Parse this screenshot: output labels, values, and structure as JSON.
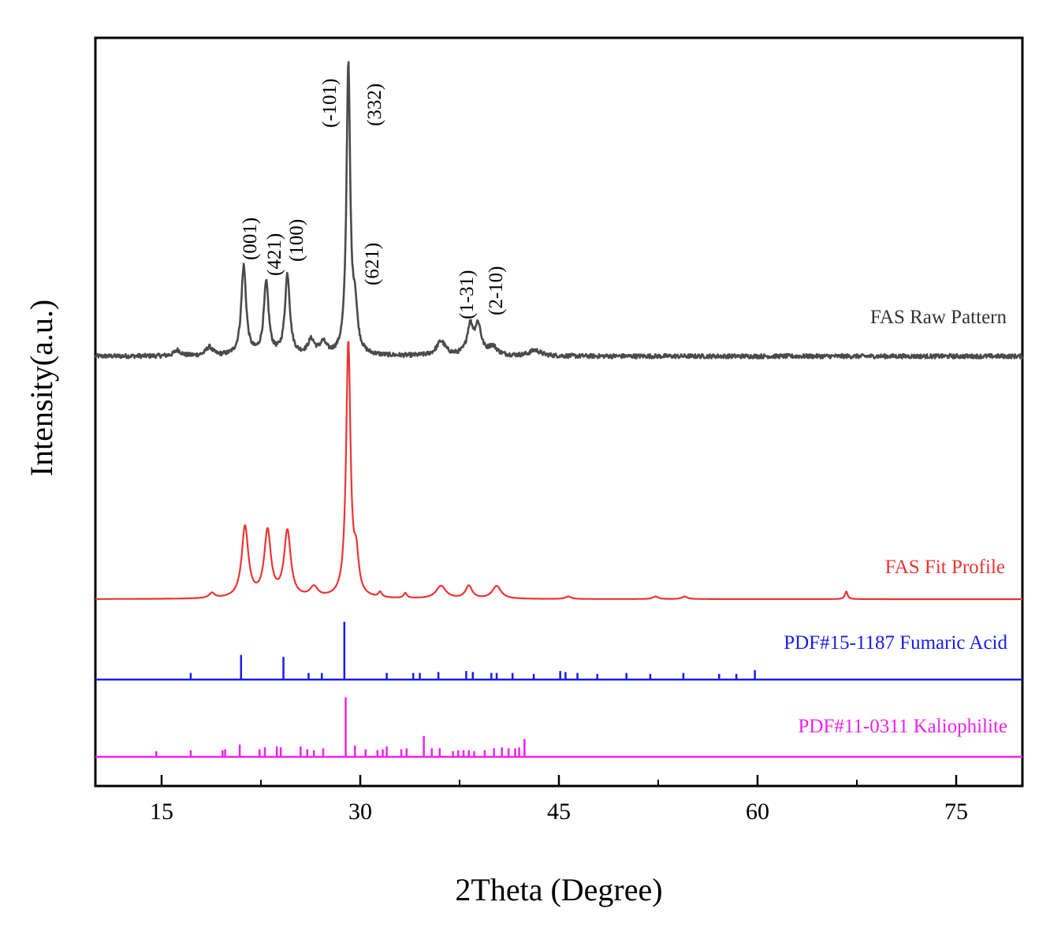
{
  "chart_data": {
    "type": "line",
    "xlabel": "2Theta (Degree)",
    "ylabel": "Intensity(a.u.)",
    "xlim": [
      10,
      80
    ],
    "xticks": [
      15,
      30,
      45,
      60,
      75
    ],
    "xtick_labels": [
      "15",
      "30",
      "45",
      "60",
      "75"
    ],
    "y_ticks_shown": false,
    "grid": false,
    "series": [
      {
        "name": "FAS Raw Pattern",
        "color": "#4a4a4a",
        "kind": "profile",
        "peaks": [
          {
            "x": 16.2,
            "h": 2,
            "w": 0.3
          },
          {
            "x": 18.6,
            "h": 3,
            "w": 0.3
          },
          {
            "x": 21.2,
            "h": 31,
            "w": 0.22
          },
          {
            "x": 22.9,
            "h": 25,
            "w": 0.22
          },
          {
            "x": 24.5,
            "h": 28,
            "w": 0.22
          },
          {
            "x": 26.3,
            "h": 5,
            "w": 0.3
          },
          {
            "x": 27.2,
            "h": 4,
            "w": 0.3
          },
          {
            "x": 29.1,
            "h": 100,
            "w": 0.17
          },
          {
            "x": 29.6,
            "h": 15,
            "w": 0.22
          },
          {
            "x": 36.1,
            "h": 5,
            "w": 0.4
          },
          {
            "x": 38.3,
            "h": 10,
            "w": 0.28
          },
          {
            "x": 38.9,
            "h": 10,
            "w": 0.28
          },
          {
            "x": 40.0,
            "h": 3,
            "w": 0.4
          },
          {
            "x": 43.2,
            "h": 2,
            "w": 0.5
          }
        ],
        "noise": 1.5,
        "scale_px": 365
      },
      {
        "name": "FAS Fit Profile",
        "color": "#ee3333",
        "kind": "profile",
        "peaks": [
          {
            "x": 18.8,
            "h": 2,
            "w": 0.25
          },
          {
            "x": 21.3,
            "h": 28,
            "w": 0.3
          },
          {
            "x": 23.0,
            "h": 26,
            "w": 0.3
          },
          {
            "x": 24.5,
            "h": 26,
            "w": 0.3
          },
          {
            "x": 26.5,
            "h": 4,
            "w": 0.35
          },
          {
            "x": 29.1,
            "h": 100,
            "w": 0.2
          },
          {
            "x": 29.7,
            "h": 14,
            "w": 0.22
          },
          {
            "x": 31.5,
            "h": 2,
            "w": 0.15
          },
          {
            "x": 33.4,
            "h": 2,
            "w": 0.15
          },
          {
            "x": 36.1,
            "h": 5,
            "w": 0.45
          },
          {
            "x": 38.2,
            "h": 5,
            "w": 0.3
          },
          {
            "x": 40.3,
            "h": 5,
            "w": 0.4
          },
          {
            "x": 45.7,
            "h": 1,
            "w": 0.25
          },
          {
            "x": 52.3,
            "h": 1,
            "w": 0.25
          },
          {
            "x": 54.5,
            "h": 1,
            "w": 0.25
          },
          {
            "x": 66.7,
            "h": 3,
            "w": 0.12
          }
        ],
        "noise": 0,
        "scale_px": 323
      },
      {
        "name": "PDF#15-1187  Fumaric Acid",
        "color": "#1a1aee",
        "kind": "sticks",
        "x": [
          17.2,
          21.0,
          24.2,
          26.1,
          27.1,
          28.8,
          32.0,
          34.0,
          34.5,
          35.9,
          38.0,
          38.5,
          39.9,
          40.3,
          41.5,
          43.1,
          45.1,
          45.5,
          46.4,
          47.9,
          50.1,
          51.9,
          54.4,
          57.1,
          58.4,
          59.8
        ],
        "h": [
          7,
          26,
          24,
          7,
          7,
          61,
          7,
          7,
          7,
          8,
          9,
          8,
          7,
          7,
          7,
          6,
          9,
          8,
          7,
          6,
          7,
          6,
          7,
          6,
          6,
          10
        ],
        "scale_px": 1.2
      },
      {
        "name": "PDF#11-0311  Kaliophilite",
        "color": "#ee22ee",
        "kind": "sticks",
        "x": [
          14.6,
          17.2,
          19.6,
          19.8,
          20.9,
          22.4,
          22.8,
          23.7,
          24.0,
          25.5,
          26.0,
          26.5,
          27.2,
          28.9,
          29.6,
          30.4,
          31.3,
          31.7,
          32.0,
          33.1,
          33.5,
          34.8,
          35.4,
          36.0,
          37.0,
          37.4,
          37.8,
          38.2,
          38.6,
          39.4,
          40.1,
          40.7,
          41.2,
          41.7,
          42.0,
          42.4
        ],
        "h": [
          6,
          7,
          7,
          8,
          13,
          8,
          10,
          11,
          10,
          11,
          8,
          7,
          9,
          63,
          12,
          8,
          7,
          8,
          11,
          8,
          9,
          22,
          9,
          9,
          6,
          7,
          7,
          7,
          6,
          7,
          9,
          10,
          9,
          9,
          10,
          19
        ],
        "scale_px": 1.2
      }
    ],
    "annotations": [
      "(001)",
      "(421)",
      "(100)",
      "(-101)",
      "(332)",
      "(621)",
      "(1-31)",
      "(2-10)"
    ]
  }
}
